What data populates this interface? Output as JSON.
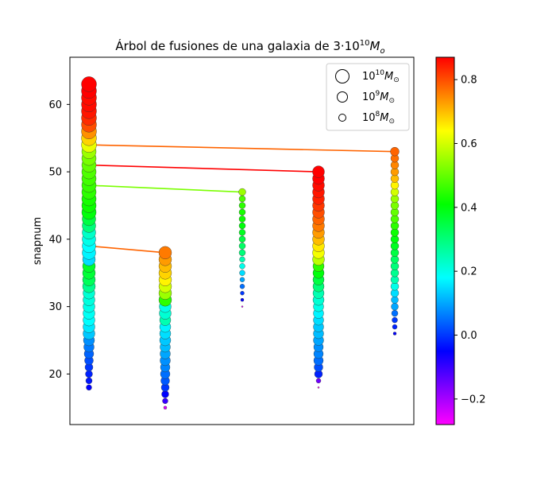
{
  "chart_data": {
    "type": "scatter",
    "title": "Árbol de fusiones de una galaxia de 3·10",
    "title_exp": "10",
    "title_unit": "M",
    "title_sub": "o",
    "xlabel": "",
    "ylabel": "snapnum",
    "ylim": [
      12.5,
      67
    ],
    "yticks": [
      20,
      30,
      40,
      50,
      60
    ],
    "colorbar": {
      "colormap": "gist_rainbow_r",
      "range": [
        -0.28,
        0.87
      ],
      "ticks": [
        -0.2,
        0.0,
        0.2,
        0.4,
        0.6,
        0.8
      ],
      "tick_labels": [
        "−0.2",
        "0.0",
        "0.2",
        "0.4",
        "0.6",
        "0.8"
      ]
    },
    "legend": {
      "placement": "upper-right",
      "entries": [
        {
          "base": "10",
          "exp": "10",
          "unit": "M",
          "sub": "⊙",
          "marker_size": "large"
        },
        {
          "base": "10",
          "exp": "9",
          "unit": "M",
          "sub": "⊙",
          "marker_size": "medium"
        },
        {
          "base": "10",
          "exp": "8",
          "unit": "M",
          "sub": "⊙",
          "marker_size": "small"
        }
      ]
    },
    "branches": [
      {
        "name": "main",
        "snap_start": 18,
        "snap_end": 63,
        "col": 0,
        "r": [
          3.5,
          4,
          4.5,
          5,
          5.5,
          6,
          6.5,
          7,
          7.5,
          7.5,
          7.5,
          7.5,
          7.5,
          7.5,
          7.5,
          8,
          8,
          8,
          8,
          8,
          8.5,
          8.5,
          8.5,
          8.5,
          8.5,
          8.5,
          9,
          9,
          9,
          9,
          9,
          9,
          9,
          9,
          9,
          9,
          9.5,
          9.5,
          9.5,
          9.5,
          9.5,
          9.5,
          9.5,
          9.5,
          9.5,
          9.5
        ],
        "c": [
          -0.05,
          -0.03,
          -0.02,
          0.0,
          0.02,
          0.04,
          0.06,
          0.08,
          0.13,
          0.16,
          0.18,
          0.19,
          0.2,
          0.21,
          0.22,
          0.28,
          0.33,
          0.36,
          0.37,
          0.15,
          0.17,
          0.18,
          0.2,
          0.23,
          0.3,
          0.35,
          0.4,
          0.42,
          0.43,
          0.45,
          0.46,
          0.47,
          0.48,
          0.5,
          0.52,
          0.55,
          0.62,
          0.68,
          0.74,
          0.8,
          0.83,
          0.85,
          0.86,
          0.86,
          0.87,
          0.87
        ]
      },
      {
        "name": "branch-1",
        "snap_start": 15,
        "snap_end": 38,
        "col": 1,
        "r": [
          2,
          3.5,
          4.5,
          5,
          5.5,
          6,
          6,
          6.5,
          6.5,
          6.5,
          7,
          7,
          7,
          7,
          7.5,
          7.5,
          8,
          8,
          8,
          8,
          8,
          8,
          8,
          8
        ],
        "c": [
          -0.25,
          -0.1,
          -0.05,
          0.0,
          0.03,
          0.05,
          0.07,
          0.08,
          0.1,
          0.12,
          0.13,
          0.15,
          0.17,
          0.25,
          0.22,
          0.2,
          0.45,
          0.55,
          0.6,
          0.65,
          0.68,
          0.7,
          0.73,
          0.76
        ]
      },
      {
        "name": "branch-2",
        "snap_start": 30,
        "snap_end": 47,
        "col": 2,
        "r": [
          1,
          2,
          2.5,
          3,
          3,
          3.5,
          3.5,
          3.5,
          4,
          4,
          4,
          4,
          4,
          4,
          4,
          4,
          4,
          4.5
        ],
        "c": [
          -0.26,
          -0.05,
          0.0,
          0.05,
          0.1,
          0.15,
          0.2,
          0.25,
          0.3,
          0.32,
          0.35,
          0.38,
          0.4,
          0.42,
          0.43,
          0.45,
          0.48,
          0.55
        ]
      },
      {
        "name": "branch-3",
        "snap_start": 18,
        "snap_end": 50,
        "col": 3,
        "r": [
          1,
          3,
          5,
          5.5,
          6,
          6,
          6,
          6.5,
          6.5,
          6.5,
          6.5,
          6.5,
          6.5,
          7,
          7,
          7,
          7,
          7,
          7,
          7.5,
          7.5,
          7.5,
          7.5,
          7.5,
          7.5,
          7.5,
          7.5,
          7.5,
          7.5,
          7.5,
          7.5,
          7.5,
          7.5
        ],
        "c": [
          -0.28,
          -0.15,
          -0.02,
          0.02,
          0.05,
          0.07,
          0.08,
          0.1,
          0.12,
          0.13,
          0.15,
          0.17,
          0.2,
          0.22,
          0.25,
          0.3,
          0.35,
          0.4,
          0.45,
          0.58,
          0.63,
          0.66,
          0.7,
          0.73,
          0.76,
          0.78,
          0.8,
          0.82,
          0.84,
          0.85,
          0.86,
          0.87,
          0.87
        ]
      },
      {
        "name": "branch-4",
        "snap_start": 26,
        "snap_end": 53,
        "col": 4,
        "r": [
          2,
          3,
          3.5,
          4,
          4.5,
          4.5,
          5,
          5,
          5,
          5,
          5,
          5,
          5,
          5,
          5,
          5,
          5,
          5,
          5,
          5,
          5,
          5,
          5,
          5,
          5,
          5,
          5,
          5.5
        ],
        "c": [
          -0.05,
          -0.02,
          0.0,
          0.05,
          0.1,
          0.12,
          0.15,
          0.2,
          0.25,
          0.28,
          0.3,
          0.32,
          0.35,
          0.38,
          0.4,
          0.42,
          0.45,
          0.48,
          0.5,
          0.52,
          0.55,
          0.6,
          0.65,
          0.7,
          0.73,
          0.75,
          0.77,
          0.78
        ]
      }
    ],
    "mergers": [
      {
        "from_branch": "branch-1",
        "from_snap": 38,
        "to_snap": 39,
        "c": 0.78
      },
      {
        "from_branch": "branch-2",
        "from_snap": 47,
        "to_snap": 48,
        "c": 0.52
      },
      {
        "from_branch": "branch-3",
        "from_snap": 50,
        "to_snap": 51,
        "c": 0.87
      },
      {
        "from_branch": "branch-4",
        "from_snap": 53,
        "to_snap": 54,
        "c": 0.78
      }
    ]
  }
}
